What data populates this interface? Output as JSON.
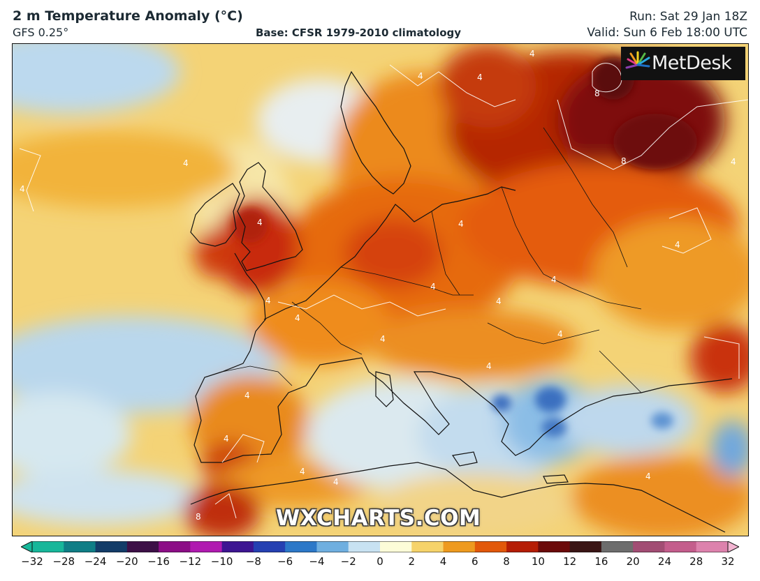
{
  "header": {
    "title": "2 m Temperature Anomaly (°C)",
    "model": "GFS 0.25°",
    "base": "Base: CFSR 1979-2010 climatology",
    "run": "Run: Sat 29 Jan 18Z",
    "valid": "Valid: Sun 6 Feb 18:00 UTC"
  },
  "branding": {
    "logo": "MetDesk",
    "watermark": "WXCHARTS.COM"
  },
  "map": {
    "variable": "2 m temperature anomaly",
    "contour_labels": [
      "4",
      "4",
      "4",
      "4",
      "4",
      "4",
      "4",
      "4",
      "4",
      "4",
      "4",
      "4",
      "4",
      "4",
      "4",
      "4",
      "4",
      "4",
      "4",
      "4",
      "4",
      "8",
      "8",
      "8",
      "4"
    ]
  },
  "colorbar": {
    "ticks": [
      "−32",
      "−28",
      "−24",
      "−20",
      "−16",
      "−12",
      "−10",
      "−8",
      "−6",
      "−4",
      "−2",
      "0",
      "2",
      "4",
      "6",
      "8",
      "10",
      "12",
      "16",
      "20",
      "24",
      "28",
      "32"
    ],
    "colors": [
      "#17b79a",
      "#0f7e86",
      "#133c68",
      "#3d1047",
      "#8c0d86",
      "#b01ab0",
      "#3d1592",
      "#2540b2",
      "#2c78c8",
      "#6fafe0",
      "#c8e2f2",
      "#fcfcd8",
      "#f6d36a",
      "#ee9a1f",
      "#e2580a",
      "#b51d05",
      "#6b0a0a",
      "#3a1515",
      "#6d6d6d",
      "#a24d74",
      "#c45d8c",
      "#dd82ad",
      "#f3b5d2"
    ]
  }
}
